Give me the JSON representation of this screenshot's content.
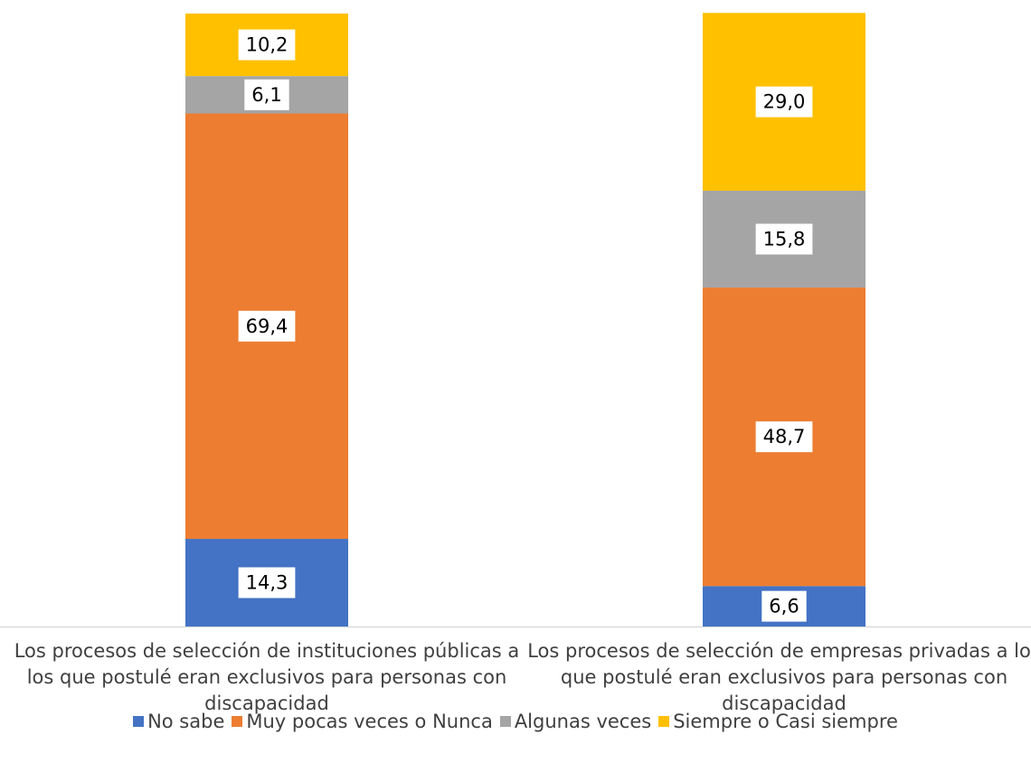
{
  "chart_data": {
    "type": "stacked_bar",
    "categories": [
      "Los procesos de selección de instituciones públicas a los que postulé eran exclusivos para personas con discapacidad",
      "Los procesos de selección de empresas privadas a los que postulé eran exclusivos para personas con discapacidad"
    ],
    "series": [
      {
        "name": "No sabe",
        "color": "#4472c4",
        "values": [
          14.3,
          6.6
        ],
        "value_labels": [
          "14,3",
          "6,6"
        ]
      },
      {
        "name": "Muy pocas veces o Nunca",
        "color": "#ed7d31",
        "values": [
          69.4,
          48.7
        ],
        "value_labels": [
          "69,4",
          "48,7"
        ]
      },
      {
        "name": "Algunas veces",
        "color": "#a5a5a5",
        "values": [
          6.1,
          15.8
        ],
        "value_labels": [
          "6,1",
          "15,8"
        ]
      },
      {
        "name": "Siempre o Casi siempre",
        "color": "#ffc000",
        "values": [
          10.2,
          29.0
        ],
        "value_labels": [
          "10,2",
          "29,0"
        ]
      }
    ],
    "ylim": [
      0,
      100
    ],
    "legend": "bottom"
  }
}
